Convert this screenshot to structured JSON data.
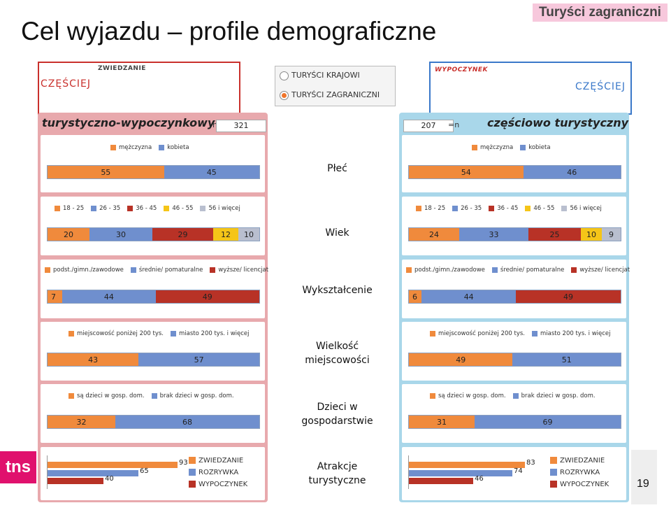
{
  "title": "Cel wyjazdu – profile demograficzne",
  "badge": "Turyści zagraniczni",
  "page_number": "19",
  "logo_text": "tns",
  "header_left": {
    "label": "ZWIEDZANIE",
    "value": "CZĘŚCIEJ"
  },
  "header_right": {
    "label": "WYPOCZYNEK",
    "value": "CZĘŚCIEJ"
  },
  "radio": {
    "options": [
      "TURYŚCI KRAJOWI",
      "TURYŚCI ZAGRANICZNI"
    ],
    "selected": "TURYŚCI ZAGRANICZNI"
  },
  "colors": {
    "orange": "#f08a3c",
    "blue": "#6f8fce",
    "darkred": "#b83226",
    "yellow": "#f5c518",
    "gray": "#b9bfcf",
    "panel_left": "#e8a9ad",
    "panel_right": "#a9d7ea"
  },
  "chart_data": [
    {
      "type": "bar",
      "title": "turystyczno-wypoczynkowy",
      "n_label": "n=",
      "n": "321",
      "categories": [
        "Płeć",
        "Wiek",
        "Wykształcenie",
        "Wielkość miejscowości",
        "Dzieci w gospodarstwie",
        "Atrakcje turystyczne"
      ],
      "stacked": [
        {
          "category": "Płeć",
          "legend": [
            "mężczyzna",
            "kobieta"
          ],
          "values": [
            55,
            45
          ]
        },
        {
          "category": "Wiek",
          "legend": [
            "18 - 25",
            "26 - 35",
            "36 - 45",
            "46 - 55",
            "56 i więcej"
          ],
          "values": [
            20,
            30,
            29,
            12,
            10
          ]
        },
        {
          "category": "Wykształcenie",
          "legend": [
            "podst./gimn./zawodowe",
            "średnie/ pomaturalne",
            "wyższe/ licencjat"
          ],
          "values": [
            7,
            44,
            49
          ]
        },
        {
          "category": "Wielkość miejscowości",
          "legend": [
            "miejscowość poniżej 200 tys.",
            "miasto 200 tys. i więcej"
          ],
          "values": [
            43,
            57
          ]
        },
        {
          "category": "Dzieci w gospodarstwie",
          "legend": [
            "są dzieci w gosp. dom.",
            "brak dzieci w gosp. dom."
          ],
          "values": [
            32,
            68
          ]
        }
      ],
      "attractions": {
        "legend": [
          "ZWIEDZANIE",
          "ROZRYWKA",
          "WYPOCZYNEK"
        ],
        "values": [
          93,
          65,
          40
        ]
      }
    },
    {
      "type": "bar",
      "title": "częściowo turystyczny",
      "n_label": "=n",
      "n": "207",
      "categories": [
        "Płeć",
        "Wiek",
        "Wykształcenie",
        "Wielkość miejscowości",
        "Dzieci w gospodarstwie",
        "Atrakcje turystyczne"
      ],
      "stacked": [
        {
          "category": "Płeć",
          "legend": [
            "mężczyzna",
            "kobieta"
          ],
          "values": [
            54,
            46
          ]
        },
        {
          "category": "Wiek",
          "legend": [
            "18 - 25",
            "26 - 35",
            "36 - 45",
            "46 - 55",
            "56 i więcej"
          ],
          "values": [
            24,
            33,
            25,
            10,
            9
          ]
        },
        {
          "category": "Wykształcenie",
          "legend": [
            "podst./gimn./zawodowe",
            "średnie/ pomaturalne",
            "wyższe/ licencjat"
          ],
          "values": [
            6,
            44,
            49
          ]
        },
        {
          "category": "Wielkość miejscowości",
          "legend": [
            "miejscowość poniżej 200 tys.",
            "miasto 200 tys. i więcej"
          ],
          "values": [
            49,
            51
          ]
        },
        {
          "category": "Dzieci w gospodarstwie",
          "legend": [
            "są dzieci w gosp. dom.",
            "brak dzieci w gosp. dom."
          ],
          "values": [
            31,
            69
          ]
        }
      ],
      "attractions": {
        "legend": [
          "ZWIEDZANIE",
          "ROZRYWKA",
          "WYPOCZYNEK"
        ],
        "values": [
          83,
          74,
          46
        ]
      }
    }
  ],
  "center_labels": [
    "Płeć",
    "Wiek",
    "Wykształcenie",
    "Wielkość\nmiejscowości",
    "Dzieci w\ngospodarstwie",
    "Atrakcje\nturystyczne"
  ]
}
